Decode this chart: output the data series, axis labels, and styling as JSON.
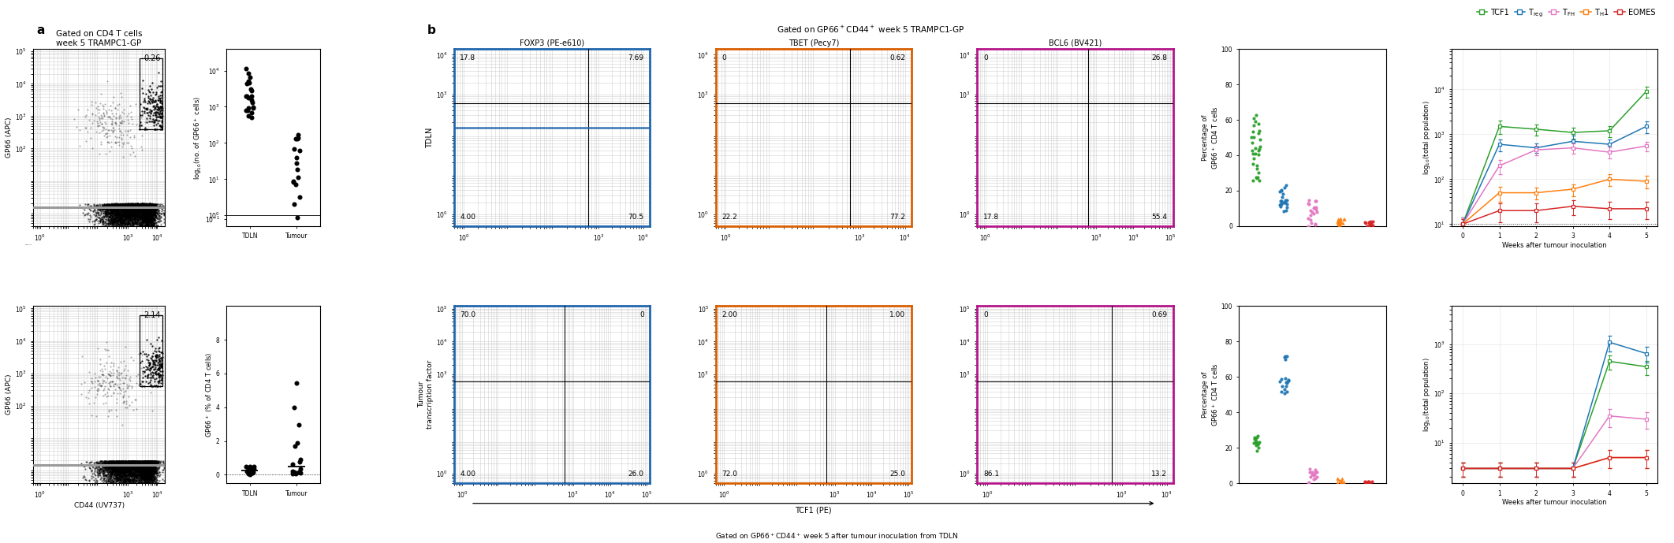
{
  "panel_a": {
    "title": "Gated on CD4 T cells\nweek 5 TRAMPC1-GP",
    "flow_plots": [
      {
        "label": "TDLN",
        "gate_pct": "0.26"
      },
      {
        "label": "Tumour",
        "gate_pct": "2.14"
      }
    ],
    "xlabel": "CD44 (UV737)",
    "ylabel": "GP66 (APC)"
  },
  "panel_b": {
    "title": "Gated on GP66⁺CD44⁺ week 5 TRAMPC1-GP",
    "bottom_label": "Gated on GP66⁺CD44⁺ week 5 after tumour inoculation from TDLN",
    "flow_labels": [
      "FOXP3 (PE-e610)",
      "TBET (Pecy7)",
      "BCL6 (BV421)"
    ],
    "border_colors": [
      "#2166ac",
      "#d95f02",
      "#b5158a"
    ],
    "xlabel": "TCF1 (PE)",
    "quadrant_values": {
      "FOXP3_TDLN": [
        "17.8",
        "7.69",
        "4.00",
        "70.5"
      ],
      "TBET_TDLN": [
        "0",
        "0.62",
        "22.2",
        "77.2"
      ],
      "BCL6_TDLN": [
        "0",
        "26.8",
        "17.8",
        "55.4"
      ],
      "FOXP3_Tumour": [
        "70.0",
        "0",
        "4.00",
        "26.0"
      ],
      "TBET_Tumour": [
        "2.00",
        "1.00",
        "72.0",
        "25.0"
      ],
      "BCL6_Tumour": [
        "0",
        "0.69",
        "86.1",
        "13.2"
      ]
    }
  },
  "colors": {
    "TCF1": "#2ca02c",
    "Treg": "#1f77b4",
    "TFH": "#e377c2",
    "TH1": "#ff7f0e",
    "EOMES": "#d62728"
  },
  "tdln_lines": [
    [
      10,
      1500,
      1300,
      1100,
      1200,
      9000
    ],
    [
      10,
      600,
      500,
      700,
      600,
      1500
    ],
    [
      10,
      200,
      450,
      500,
      400,
      550
    ],
    [
      10,
      50,
      50,
      60,
      100,
      90
    ],
    [
      10,
      20,
      20,
      25,
      22,
      22
    ]
  ],
  "tdln_errs": [
    [
      4,
      500,
      350,
      300,
      350,
      2500
    ],
    [
      4,
      180,
      120,
      220,
      160,
      450
    ],
    [
      4,
      70,
      110,
      130,
      110,
      130
    ],
    [
      3,
      18,
      14,
      18,
      28,
      28
    ],
    [
      3,
      9,
      9,
      9,
      9,
      9
    ]
  ],
  "tumour_lines": [
    [
      3,
      3,
      3,
      3,
      450,
      350
    ],
    [
      3,
      3,
      3,
      3,
      1100,
      650
    ],
    [
      3,
      3,
      3,
      3,
      35,
      30
    ],
    [
      3,
      3,
      3,
      3,
      5,
      5
    ],
    [
      3,
      3,
      3,
      3,
      5,
      5
    ]
  ],
  "tumour_errs": [
    [
      1,
      1,
      1,
      1,
      140,
      110
    ],
    [
      1,
      1,
      1,
      1,
      380,
      230
    ],
    [
      1,
      1,
      1,
      1,
      14,
      11
    ],
    [
      1,
      1,
      1,
      1,
      2,
      2
    ],
    [
      1,
      1,
      1,
      1,
      2,
      2
    ]
  ]
}
